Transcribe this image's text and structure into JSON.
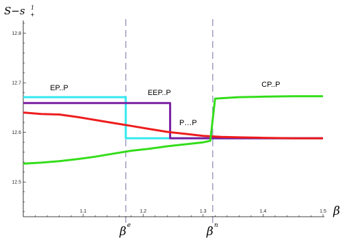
{
  "chart_data": {
    "type": "line",
    "ylabel": {
      "main": "S−s",
      "sub": "+",
      "sup": "1"
    },
    "xlabel": "β",
    "xlim": [
      1.0,
      1.5
    ],
    "ylim": [
      12.43,
      12.82
    ],
    "x_ticks": [
      {
        "value": 1.1,
        "label": "1.1"
      },
      {
        "value": 1.2,
        "label": "1.2"
      },
      {
        "value": 1.3,
        "label": "1.3"
      },
      {
        "value": 1.4,
        "label": "1.4"
      },
      {
        "value": 1.5,
        "label": "1.5"
      }
    ],
    "y_ticks": [
      {
        "value": 12.5,
        "label": "12.5"
      },
      {
        "value": 12.6,
        "label": "12.6"
      },
      {
        "value": 12.7,
        "label": "12.7"
      },
      {
        "value": 12.8,
        "label": "12.8"
      }
    ],
    "markers": [
      {
        "x": 1.171,
        "base": "β",
        "sup": "e"
      },
      {
        "x": 1.316,
        "base": "β",
        "sup": "n"
      }
    ],
    "region_labels": [
      {
        "text": "EP..P",
        "x": 1.06,
        "y": 12.685
      },
      {
        "text": "EEP..P",
        "x": 1.227,
        "y": 12.675
      },
      {
        "text": "P…P",
        "x": 1.275,
        "y": 12.615
      },
      {
        "text": "CP..P",
        "x": 1.413,
        "y": 12.692
      }
    ],
    "series": [
      {
        "color": "#33e8f0",
        "points": [
          [
            1.0,
            12.671
          ],
          [
            1.171,
            12.671
          ],
          [
            1.171,
            12.588
          ],
          [
            1.316,
            12.588
          ],
          [
            1.5,
            12.588
          ]
        ]
      },
      {
        "color": "#7b1fa2",
        "points": [
          [
            1.0,
            12.659
          ],
          [
            1.245,
            12.659
          ],
          [
            1.245,
            12.588
          ],
          [
            1.5,
            12.588
          ]
        ]
      },
      {
        "color": "#ee1c1c",
        "points": [
          [
            1.0,
            12.64
          ],
          [
            1.03,
            12.637
          ],
          [
            1.06,
            12.636
          ],
          [
            1.09,
            12.631
          ],
          [
            1.12,
            12.625
          ],
          [
            1.15,
            12.619
          ],
          [
            1.18,
            12.613
          ],
          [
            1.21,
            12.607
          ],
          [
            1.24,
            12.601
          ],
          [
            1.27,
            12.597
          ],
          [
            1.3,
            12.593
          ],
          [
            1.33,
            12.591
          ],
          [
            1.36,
            12.59
          ],
          [
            1.4,
            12.589
          ],
          [
            1.45,
            12.588
          ],
          [
            1.5,
            12.588
          ]
        ]
      },
      {
        "color": "#33dd1a",
        "points": [
          [
            1.0,
            12.537
          ],
          [
            1.03,
            12.539
          ],
          [
            1.06,
            12.542
          ],
          [
            1.09,
            12.546
          ],
          [
            1.12,
            12.551
          ],
          [
            1.15,
            12.557
          ],
          [
            1.18,
            12.563
          ],
          [
            1.21,
            12.567
          ],
          [
            1.24,
            12.572
          ],
          [
            1.27,
            12.576
          ],
          [
            1.3,
            12.58
          ],
          [
            1.312,
            12.583
          ],
          [
            1.32,
            12.668
          ],
          [
            1.36,
            12.671
          ],
          [
            1.4,
            12.672
          ],
          [
            1.45,
            12.673
          ],
          [
            1.5,
            12.673
          ]
        ]
      }
    ]
  }
}
